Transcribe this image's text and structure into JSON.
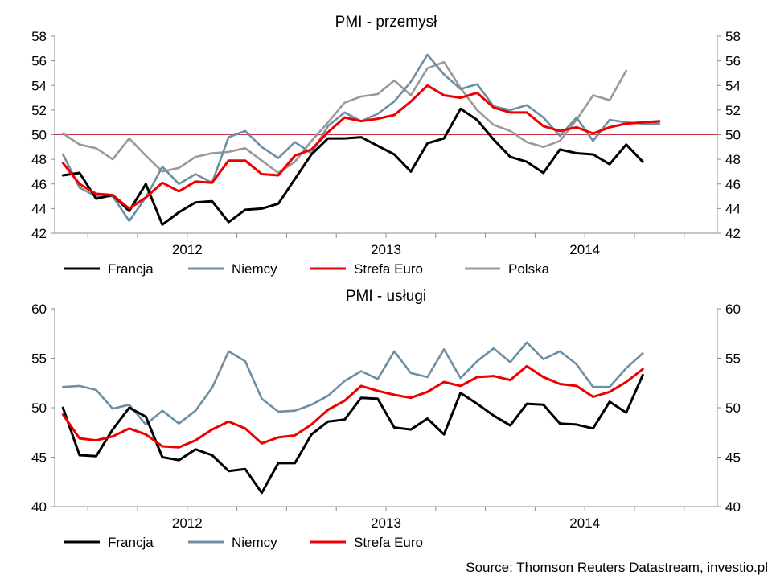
{
  "colors": {
    "Francja": "#000000",
    "Niemcy": "#6e8fa3",
    "Strefa Euro": "#ee0000",
    "Polska": "#999999",
    "refline": "#c8324a",
    "axis": "#8c8c8c"
  },
  "source": "Source: Thomson Reuters Datastream, investio.pl",
  "chart_data": [
    {
      "type": "line",
      "title": "PMI - przemysł",
      "x": [
        "2011-11",
        "2011-12",
        "2012-01",
        "2012-02",
        "2012-03",
        "2012-04",
        "2012-05",
        "2012-06",
        "2012-07",
        "2012-08",
        "2012-09",
        "2012-10",
        "2012-11",
        "2012-12",
        "2013-01",
        "2013-02",
        "2013-03",
        "2013-04",
        "2013-05",
        "2013-06",
        "2013-07",
        "2013-08",
        "2013-09",
        "2013-10",
        "2013-11",
        "2013-12",
        "2014-01",
        "2014-02",
        "2014-03",
        "2014-04",
        "2014-05",
        "2014-06",
        "2014-07",
        "2014-08",
        "2014-09",
        "2014-10",
        "2014-11",
        "2014-12",
        "2015-01",
        "2015-02"
      ],
      "x_tick_labels": [
        "2012",
        "2013",
        "2014"
      ],
      "ylim": [
        42,
        58
      ],
      "yticks": [
        42,
        44,
        46,
        48,
        50,
        52,
        54,
        56,
        58
      ],
      "reference_line": 50,
      "legend": [
        "Francja",
        "Niemcy",
        "Strefa Euro",
        "Polska"
      ],
      "legend_placement": "bottom",
      "series": [
        {
          "name": "Francja",
          "values": [
            46.7,
            46.9,
            44.8,
            45.1,
            43.8,
            46.0,
            42.7,
            43.7,
            44.5,
            44.6,
            42.9,
            43.9,
            44.0,
            44.4,
            46.4,
            48.4,
            49.7,
            49.7,
            49.8,
            49.1,
            48.4,
            47.0,
            49.3,
            49.7,
            52.1,
            51.2,
            49.6,
            48.2,
            47.8,
            46.9,
            48.8,
            48.5,
            48.4,
            47.6,
            49.2,
            47.8,
            null,
            null,
            null,
            null
          ]
        },
        {
          "name": "Niemcy",
          "values": [
            48.4,
            45.7,
            45.0,
            45.0,
            43.0,
            44.9,
            47.4,
            46.0,
            46.8,
            46.1,
            49.8,
            50.3,
            49.0,
            48.1,
            49.4,
            48.5,
            50.7,
            51.8,
            51.1,
            51.7,
            52.7,
            54.3,
            56.5,
            54.9,
            53.7,
            54.1,
            52.3,
            52.0,
            52.4,
            51.4,
            49.9,
            51.4,
            49.5,
            51.2,
            51.0,
            50.9,
            50.9,
            null,
            null,
            null
          ]
        },
        {
          "name": "Strefa Euro",
          "values": [
            47.7,
            46.0,
            45.2,
            45.1,
            44.0,
            44.9,
            46.1,
            45.4,
            46.2,
            46.1,
            47.9,
            47.9,
            46.8,
            46.7,
            48.3,
            48.8,
            50.2,
            51.4,
            51.1,
            51.3,
            51.6,
            52.7,
            54.0,
            53.2,
            53.0,
            53.4,
            52.2,
            51.8,
            51.8,
            50.7,
            50.3,
            50.6,
            50.1,
            50.6,
            50.9,
            51.0,
            51.1,
            null,
            null,
            null
          ]
        },
        {
          "name": "Polska",
          "values": [
            50.1,
            49.2,
            48.9,
            48.0,
            49.7,
            48.3,
            47.0,
            47.3,
            48.2,
            48.5,
            48.6,
            48.9,
            47.9,
            46.9,
            47.8,
            49.5,
            51.0,
            52.6,
            53.1,
            53.3,
            54.4,
            53.2,
            55.4,
            55.9,
            53.8,
            52.0,
            50.8,
            50.3,
            49.4,
            49.0,
            49.5,
            51.2,
            53.2,
            52.8,
            55.2,
            null,
            null,
            null,
            null,
            null
          ]
        }
      ]
    },
    {
      "type": "line",
      "title": "PMI - usługi",
      "x": [
        "2011-11",
        "2011-12",
        "2012-01",
        "2012-02",
        "2012-03",
        "2012-04",
        "2012-05",
        "2012-06",
        "2012-07",
        "2012-08",
        "2012-09",
        "2012-10",
        "2012-11",
        "2012-12",
        "2013-01",
        "2013-02",
        "2013-03",
        "2013-04",
        "2013-05",
        "2013-06",
        "2013-07",
        "2013-08",
        "2013-09",
        "2013-10",
        "2013-11",
        "2013-12",
        "2014-01",
        "2014-02",
        "2014-03",
        "2014-04",
        "2014-05",
        "2014-06",
        "2014-07",
        "2014-08",
        "2014-09",
        "2014-10",
        "2014-11",
        "2014-12",
        "2015-01",
        "2015-02"
      ],
      "x_tick_labels": [
        "2012",
        "2013",
        "2014"
      ],
      "ylim": [
        40,
        60
      ],
      "yticks": [
        40,
        45,
        50,
        55,
        60
      ],
      "legend": [
        "Francja",
        "Niemcy",
        "Strefa Euro"
      ],
      "legend_placement": "bottom",
      "series": [
        {
          "name": "Francja",
          "values": [
            50.0,
            45.2,
            45.1,
            47.8,
            50.0,
            49.1,
            45.0,
            44.7,
            45.8,
            45.2,
            43.6,
            43.8,
            41.4,
            44.4,
            44.4,
            47.3,
            48.6,
            48.8,
            51.0,
            50.9,
            48.0,
            47.8,
            48.9,
            47.3,
            51.5,
            50.4,
            49.2,
            48.2,
            50.4,
            50.3,
            48.4,
            48.3,
            47.9,
            50.6,
            49.5,
            53.3,
            null,
            null,
            null,
            null
          ]
        },
        {
          "name": "Niemcy",
          "values": [
            52.1,
            52.2,
            51.8,
            49.9,
            50.3,
            48.3,
            49.7,
            48.4,
            49.7,
            52.0,
            55.7,
            54.7,
            50.9,
            49.6,
            49.7,
            50.3,
            51.2,
            52.7,
            53.7,
            52.9,
            55.7,
            53.5,
            53.1,
            55.9,
            53.0,
            54.7,
            56.0,
            54.6,
            56.6,
            54.9,
            55.7,
            54.4,
            52.1,
            52.1,
            54.0,
            55.5,
            null,
            null,
            null,
            null
          ]
        },
        {
          "name": "Strefa Euro",
          "values": [
            49.3,
            46.9,
            46.7,
            47.1,
            47.9,
            47.3,
            46.1,
            46.0,
            46.7,
            47.8,
            48.6,
            47.9,
            46.4,
            47.0,
            47.2,
            48.3,
            49.8,
            50.7,
            52.2,
            51.7,
            51.3,
            51.0,
            51.6,
            52.6,
            52.2,
            53.1,
            53.2,
            52.8,
            54.2,
            53.1,
            52.4,
            52.2,
            51.1,
            51.6,
            52.6,
            53.9,
            null,
            null,
            null,
            null
          ]
        }
      ]
    }
  ]
}
